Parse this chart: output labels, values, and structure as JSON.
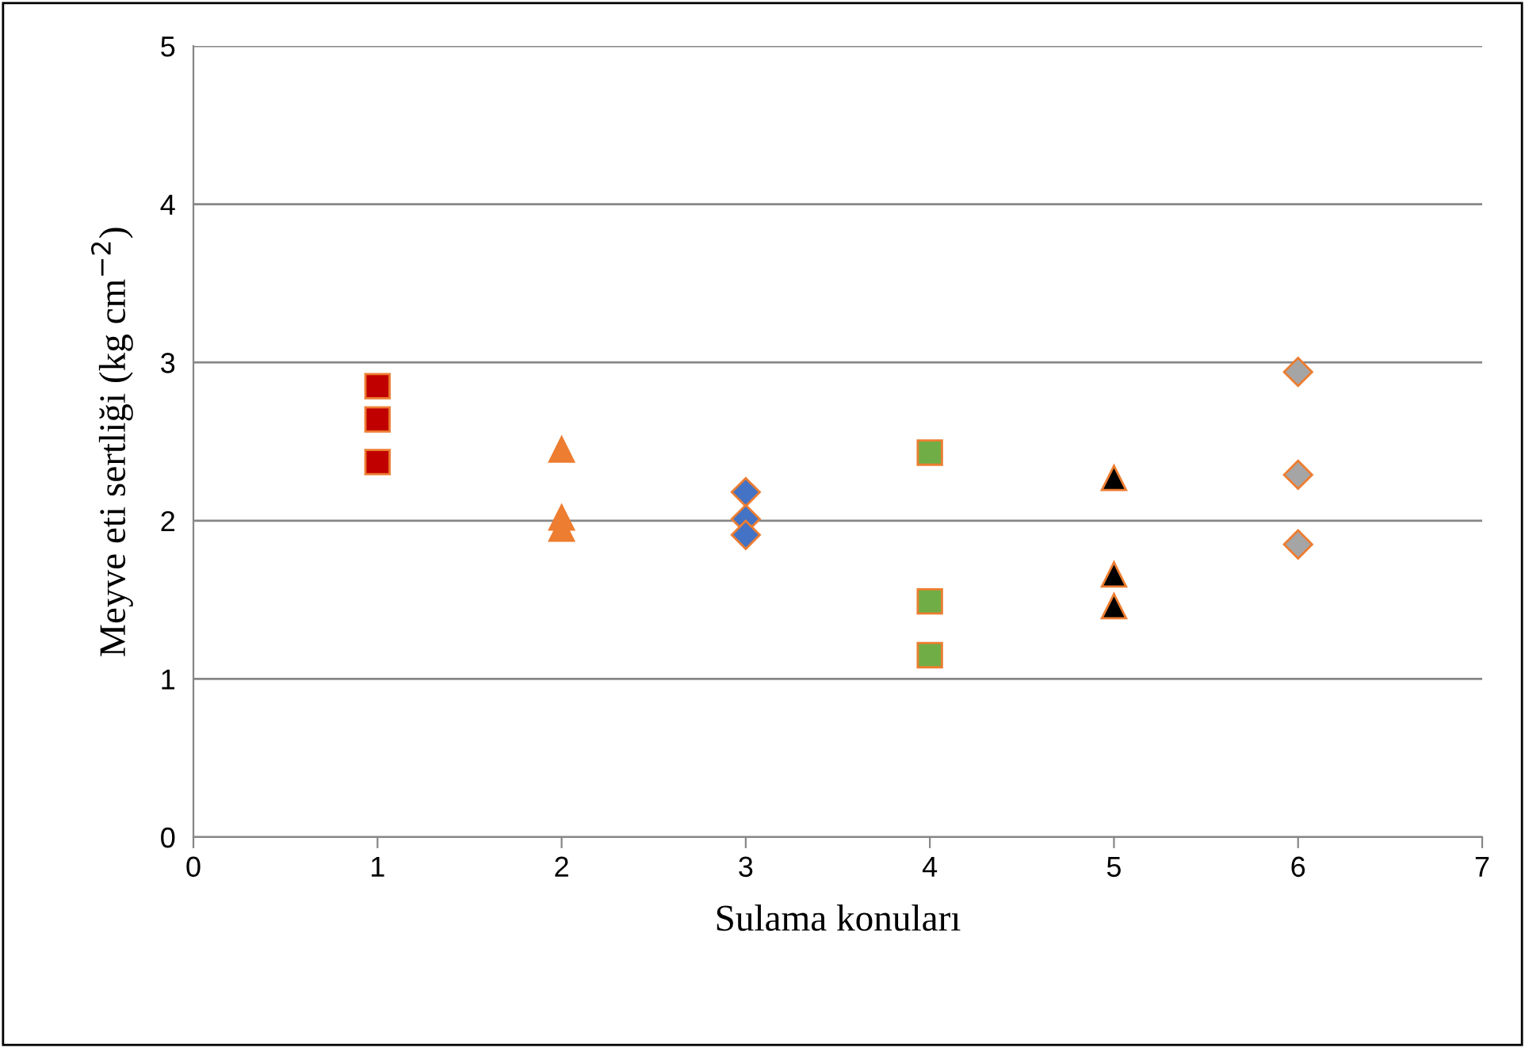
{
  "chart_data": {
    "type": "scatter",
    "xlabel": "Sulama konuları",
    "ylabel": "Meyve eti sertliği (kg cm$^{−2}$)",
    "xlim": [
      0,
      7
    ],
    "xticks": [
      0,
      1,
      2,
      3,
      4,
      5,
      6,
      7
    ],
    "ylim": [
      0,
      5
    ],
    "yticks": [
      0,
      1,
      2,
      3,
      4,
      5
    ],
    "grid": "y",
    "legend": false,
    "series": [
      {
        "x": [
          1,
          1,
          1
        ],
        "values": [
          2.85,
          2.64,
          2.37
        ],
        "color": "#c00000",
        "marker": "square"
      },
      {
        "x": [
          2,
          2,
          2
        ],
        "values": [
          2.45,
          2.02,
          1.95
        ],
        "color": "#ed7d31",
        "marker": "triangle"
      },
      {
        "x": [
          3,
          3,
          3
        ],
        "values": [
          2.18,
          2.01,
          1.91
        ],
        "color": "#4472c4",
        "marker": "diamond"
      },
      {
        "x": [
          4,
          4,
          4
        ],
        "values": [
          2.43,
          1.49,
          1.15
        ],
        "color": "#70ad47",
        "marker": "square"
      },
      {
        "x": [
          5,
          5,
          5
        ],
        "values": [
          2.27,
          1.66,
          1.46
        ],
        "color": "#000000",
        "marker": "triangle"
      },
      {
        "x": [
          6,
          6,
          6
        ],
        "values": [
          2.94,
          2.29,
          1.85
        ],
        "color": "#a5a5a5",
        "marker": "diamond"
      }
    ]
  }
}
